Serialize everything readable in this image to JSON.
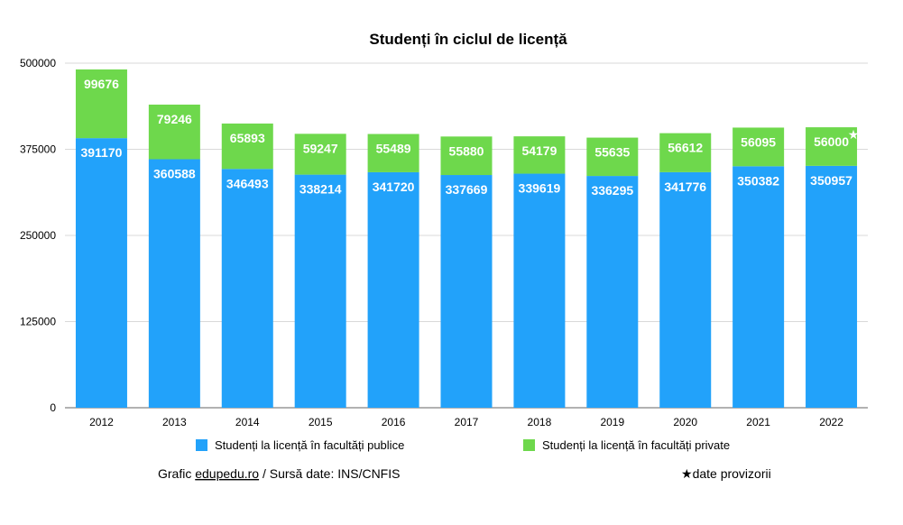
{
  "chart_data": {
    "type": "bar",
    "stacked": true,
    "title": "Studenți în ciclul de licență",
    "categories": [
      "2012",
      "2013",
      "2014",
      "2015",
      "2016",
      "2017",
      "2018",
      "2019",
      "2020",
      "2021",
      "2022"
    ],
    "series": [
      {
        "name": "Studenți la licență în facultăți publice",
        "color": "#22A2FA",
        "values": [
          391170,
          360588,
          346493,
          338214,
          341720,
          337669,
          339619,
          336295,
          341776,
          350382,
          350957
        ]
      },
      {
        "name": "Studenți la licență în facultăți private",
        "color": "#6ED84C",
        "values": [
          99676,
          79246,
          65893,
          59247,
          55489,
          55880,
          54179,
          55635,
          56612,
          56095,
          56000
        ]
      }
    ],
    "ylim": [
      0,
      500000
    ],
    "yticks": [
      0,
      125000,
      250000,
      375000,
      500000
    ],
    "grid": true,
    "legend_position": "bottom",
    "annotations": [
      {
        "category": "2022",
        "series": 1,
        "mark": "★"
      }
    ]
  },
  "footer": {
    "grafic_prefix": "Grafic ",
    "site": "edupedu.ro",
    "source": " / Sursă date: INS/CNFIS",
    "note_star": "★",
    "note_text": "date provizorii"
  }
}
